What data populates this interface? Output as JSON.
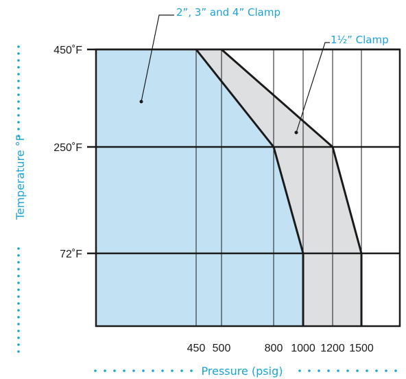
{
  "chart_data": {
    "type": "area",
    "xlabel": "Pressure (psig)",
    "ylabel": "Temperature °F",
    "x_ticks": [
      {
        "value": 450,
        "label": "450"
      },
      {
        "value": 500,
        "label": "500"
      },
      {
        "value": 800,
        "label": "800"
      },
      {
        "value": 1000,
        "label": "1000"
      },
      {
        "value": 1200,
        "label": "1200"
      },
      {
        "value": 1500,
        "label": "1500"
      }
    ],
    "y_ticks": [
      {
        "value": 450,
        "label": "450˚F"
      },
      {
        "value": 250,
        "label": "250˚F"
      },
      {
        "value": 72,
        "label": "72˚F"
      }
    ],
    "series": [
      {
        "name": "1½\" Clamp",
        "color": "#dedfe0",
        "points": [
          [
            0,
            450
          ],
          [
            500,
            450
          ],
          [
            1200,
            250
          ],
          [
            1500,
            72
          ],
          [
            1500,
            0
          ],
          [
            0,
            0
          ]
        ]
      },
      {
        "name": "2\", 3\" and 4\" Clamp",
        "color": "#c2e1f2",
        "points": [
          [
            0,
            450
          ],
          [
            450,
            450
          ],
          [
            800,
            250
          ],
          [
            1000,
            72
          ],
          [
            1000,
            0
          ],
          [
            0,
            0
          ]
        ]
      }
    ],
    "grid": true
  },
  "colors": {
    "accent": "#1ba3d6",
    "line": "#1a1a1a"
  }
}
